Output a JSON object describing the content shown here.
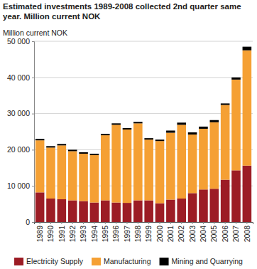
{
  "chart_data": {
    "type": "bar",
    "stacked": true,
    "title": "Estimated investments 1989-2008 collected 2nd quarter same year. Million current NOK",
    "y_label": "Million current NOK",
    "categories": [
      "1989",
      "1990",
      "1991",
      "1992",
      "1993",
      "1994",
      "1995",
      "1996",
      "1997",
      "1998",
      "1999",
      "2000",
      "2001",
      "2002",
      "2003",
      "2004",
      "2005",
      "2006",
      "2007",
      "2008"
    ],
    "series": [
      {
        "name": "Electricity Supply",
        "color": "#9c1c25",
        "values": [
          8200,
          6500,
          6300,
          6000,
          5800,
          5400,
          6000,
          5400,
          5300,
          6000,
          6000,
          5200,
          6200,
          6500,
          8000,
          9000,
          9200,
          11700,
          14300,
          15600
        ]
      },
      {
        "name": "Manufacturing",
        "color": "#f5a034",
        "values": [
          14400,
          14100,
          14900,
          13600,
          13100,
          13100,
          18000,
          21500,
          20300,
          21300,
          16800,
          17200,
          18500,
          20400,
          16200,
          16800,
          18400,
          20700,
          25100,
          31900
        ]
      },
      {
        "name": "Mining and Quarrying",
        "color": "#000000",
        "values": [
          400,
          400,
          400,
          400,
          400,
          400,
          400,
          400,
          400,
          400,
          400,
          400,
          600,
          600,
          600,
          600,
          600,
          400,
          600,
          1000
        ]
      }
    ],
    "ylim": [
      0,
      50000
    ],
    "yticks": [
      0,
      {
        "value": 10000,
        "label": "10 000"
      },
      {
        "value": 20000,
        "label": "20 000"
      },
      {
        "value": 30000,
        "label": "30 000"
      },
      {
        "value": 40000,
        "label": "40 000"
      },
      {
        "value": 50000,
        "label": "50 000"
      }
    ],
    "grid": true,
    "legend": "bottom"
  }
}
